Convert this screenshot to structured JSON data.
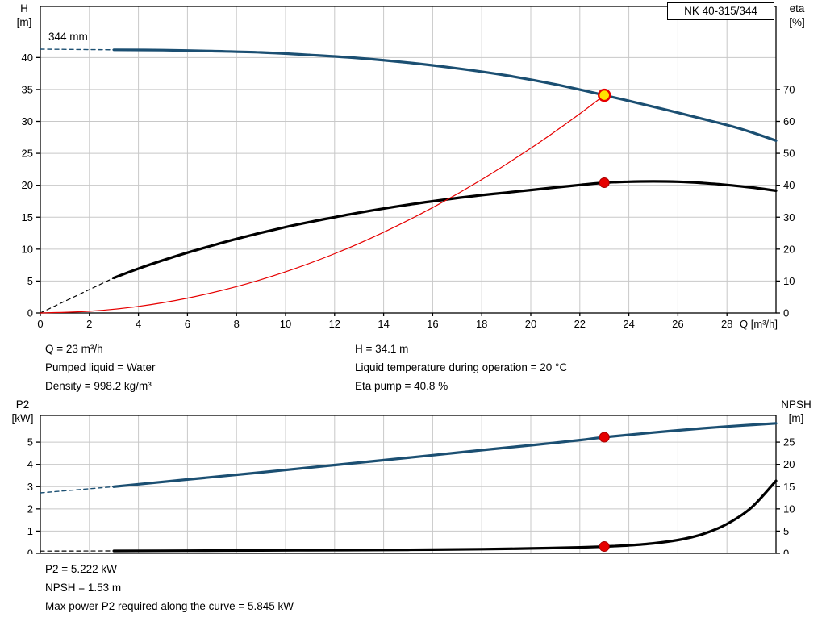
{
  "pump_name": "NK 40-315/344",
  "impeller_diameter_label": "344 mm",
  "colors": {
    "curve_blue": "#1b4f72",
    "curve_black": "#000000",
    "system_red": "#e60000",
    "duty_yellow": "#ffe100",
    "grid": "#c8c8c8",
    "axis": "#000000"
  },
  "info_top": {
    "col1": [
      "Q = 23 m³/h",
      "Pumped liquid = Water",
      "Density = 998.2 kg/m³"
    ],
    "col2": [
      "H = 34.1 m",
      "Liquid temperature during operation = 20 °C",
      "Eta pump = 40.8 %"
    ]
  },
  "info_bottom": {
    "lines": [
      "P2 = 5.222 kW",
      "NPSH = 1.53 m",
      "Max power P2 required along the curve = 5.845 kW"
    ]
  },
  "chart_data": [
    {
      "id": "head-efficiency-chart",
      "type": "line",
      "x": {
        "label": "Q [m³/h]",
        "min": 0,
        "max": 30,
        "ticks": [
          0,
          2,
          4,
          6,
          8,
          10,
          12,
          14,
          16,
          18,
          20,
          22,
          24,
          26,
          28
        ],
        "show_tick_labels": true
      },
      "y_left": {
        "title": "H",
        "unit": "[m]",
        "min": 0,
        "max": 48,
        "ticks": [
          0,
          5,
          10,
          15,
          20,
          25,
          30,
          35,
          40
        ]
      },
      "y_right": {
        "title": "eta",
        "unit": "[%]",
        "min": 0,
        "max": 96,
        "ticks": [
          0,
          10,
          20,
          30,
          40,
          50,
          60,
          70
        ]
      },
      "grid": true,
      "series": [
        {
          "name": "head-curve-extrapolated",
          "axis": "left",
          "color": "#1b4f72",
          "width": 1.4,
          "dash": true,
          "points": [
            [
              0,
              41.3
            ],
            [
              3,
              41.2
            ]
          ]
        },
        {
          "name": "head-curve",
          "axis": "left",
          "color": "#1b4f72",
          "width": 3.2,
          "dash": false,
          "points": [
            [
              3,
              41.2
            ],
            [
              5,
              41.15
            ],
            [
              7,
              41.0
            ],
            [
              9,
              40.8
            ],
            [
              11,
              40.4
            ],
            [
              13,
              39.9
            ],
            [
              15,
              39.2
            ],
            [
              17,
              38.3
            ],
            [
              19,
              37.2
            ],
            [
              21,
              35.8
            ],
            [
              23,
              34.1
            ],
            [
              25,
              32.3
            ],
            [
              27,
              30.4
            ],
            [
              28.5,
              28.9
            ],
            [
              30,
              27.0
            ]
          ]
        },
        {
          "name": "efficiency-curve-extrapolated",
          "axis": "right",
          "color": "#000000",
          "width": 1.2,
          "dash": true,
          "points": [
            [
              0,
              0
            ],
            [
              3,
              11
            ]
          ]
        },
        {
          "name": "efficiency-curve",
          "axis": "right",
          "color": "#000000",
          "width": 3.2,
          "dash": false,
          "points": [
            [
              3,
              11
            ],
            [
              4,
              13.9
            ],
            [
              5,
              16.5
            ],
            [
              6,
              18.9
            ],
            [
              7,
              21.1
            ],
            [
              8,
              23.2
            ],
            [
              9,
              25.1
            ],
            [
              10,
              26.9
            ],
            [
              11,
              28.5
            ],
            [
              12,
              30.0
            ],
            [
              13,
              31.4
            ],
            [
              14,
              32.7
            ],
            [
              15,
              33.9
            ],
            [
              16,
              35.0
            ],
            [
              17,
              36.0
            ],
            [
              18,
              36.9
            ],
            [
              19,
              37.7
            ],
            [
              20,
              38.5
            ],
            [
              21,
              39.3
            ],
            [
              22,
              40.1
            ],
            [
              23,
              40.8
            ],
            [
              24,
              41.1
            ],
            [
              25,
              41.2
            ],
            [
              26,
              41.1
            ],
            [
              27,
              40.7
            ],
            [
              28,
              40.1
            ],
            [
              29,
              39.3
            ],
            [
              30,
              38.3
            ]
          ]
        },
        {
          "name": "system-curve",
          "axis": "left",
          "color": "#e60000",
          "width": 1.2,
          "dash": false,
          "points": [
            [
              0,
              0
            ],
            [
              2,
              0.26
            ],
            [
              4,
              1.03
            ],
            [
              6,
              2.32
            ],
            [
              8,
              4.13
            ],
            [
              10,
              6.45
            ],
            [
              12,
              9.28
            ],
            [
              14,
              12.64
            ],
            [
              16,
              16.51
            ],
            [
              18,
              20.89
            ],
            [
              20,
              25.79
            ],
            [
              21,
              28.44
            ],
            [
              22,
              31.2
            ],
            [
              23,
              34.1
            ]
          ]
        }
      ],
      "markers": [
        {
          "name": "duty-point-head",
          "axis": "left",
          "x": 23,
          "y": 34.1,
          "r": 7,
          "fill": "#ffe100",
          "stroke": "#e60000",
          "sw": 2.4
        },
        {
          "name": "duty-point-efficiency",
          "axis": "right",
          "x": 23,
          "y": 40.8,
          "r": 6,
          "fill": "#e60000",
          "stroke": "#a50000",
          "sw": 1
        }
      ]
    },
    {
      "id": "power-npsh-chart",
      "type": "line",
      "x": {
        "label": "",
        "min": 0,
        "max": 30,
        "ticks": [
          0,
          2,
          4,
          6,
          8,
          10,
          12,
          14,
          16,
          18,
          20,
          22,
          24,
          26,
          28
        ],
        "show_tick_labels": false
      },
      "y_left": {
        "title": "P2",
        "unit": "[kW]",
        "min": 0,
        "max": 6.2,
        "ticks": [
          0,
          1,
          2,
          3,
          4,
          5
        ]
      },
      "y_right": {
        "title": "NPSH",
        "unit": "[m]",
        "min": 0,
        "max": 31,
        "ticks": [
          0,
          5,
          10,
          15,
          20,
          25
        ]
      },
      "grid": true,
      "series": [
        {
          "name": "p2-curve-extrapolated",
          "axis": "left",
          "color": "#1b4f72",
          "width": 1.4,
          "dash": true,
          "points": [
            [
              0,
              2.72
            ],
            [
              3,
              3.0
            ]
          ]
        },
        {
          "name": "p2-curve",
          "axis": "left",
          "color": "#1b4f72",
          "width": 3.2,
          "dash": false,
          "points": [
            [
              3,
              3.0
            ],
            [
              6,
              3.32
            ],
            [
              9,
              3.64
            ],
            [
              12,
              3.97
            ],
            [
              15,
              4.3
            ],
            [
              18,
              4.64
            ],
            [
              20,
              4.86
            ],
            [
              22,
              5.09
            ],
            [
              23,
              5.222
            ],
            [
              25,
              5.43
            ],
            [
              27,
              5.62
            ],
            [
              28.5,
              5.74
            ],
            [
              30,
              5.845
            ]
          ]
        },
        {
          "name": "npsh-curve-extrapolated",
          "axis": "right",
          "color": "#000000",
          "width": 1.2,
          "dash": true,
          "points": [
            [
              0,
              0.5
            ],
            [
              3,
              0.55
            ]
          ]
        },
        {
          "name": "npsh-curve",
          "axis": "right",
          "color": "#000000",
          "width": 3.2,
          "dash": false,
          "points": [
            [
              3,
              0.55
            ],
            [
              6,
              0.6
            ],
            [
              9,
              0.66
            ],
            [
              12,
              0.72
            ],
            [
              15,
              0.8
            ],
            [
              18,
              0.95
            ],
            [
              20,
              1.1
            ],
            [
              22,
              1.35
            ],
            [
              23,
              1.53
            ],
            [
              24,
              1.8
            ],
            [
              25,
              2.25
            ],
            [
              26,
              3.0
            ],
            [
              27,
              4.3
            ],
            [
              28,
              6.6
            ],
            [
              29,
              10.3
            ],
            [
              30,
              16.3
            ]
          ]
        }
      ],
      "markers": [
        {
          "name": "duty-point-p2",
          "axis": "left",
          "x": 23,
          "y": 5.222,
          "r": 6,
          "fill": "#e60000",
          "stroke": "#a50000",
          "sw": 1
        },
        {
          "name": "duty-point-npsh",
          "axis": "right",
          "x": 23,
          "y": 1.53,
          "r": 6,
          "fill": "#e60000",
          "stroke": "#a50000",
          "sw": 1
        }
      ]
    }
  ]
}
